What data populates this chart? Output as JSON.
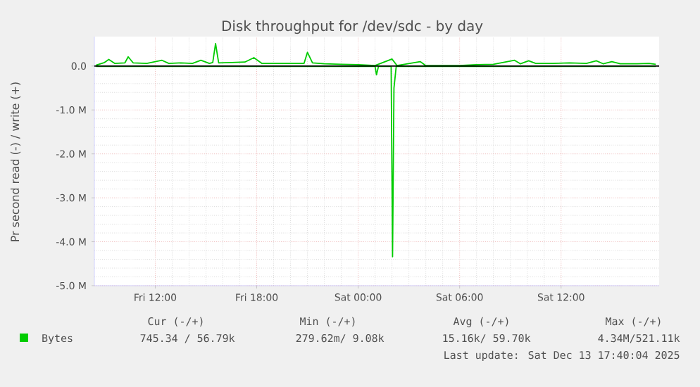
{
  "chart_data": {
    "type": "line",
    "title": "Disk throughput for /dev/sdc - by day",
    "ylabel": "Pr second read (-) / write (+)",
    "xlim": [
      "2025-12-12T08:24",
      "2025-12-13T17:48"
    ],
    "ylim": [
      -5,
      0.67
    ],
    "xticks": [
      {
        "value": "2025-12-12T12:00",
        "label": "Fri 12:00"
      },
      {
        "value": "2025-12-12T18:00",
        "label": "Fri 18:00"
      },
      {
        "value": "2025-12-13T00:00",
        "label": "Sat 00:00"
      },
      {
        "value": "2025-12-13T06:00",
        "label": "Sat 06:00"
      },
      {
        "value": "2025-12-13T12:00",
        "label": "Sat 12:00"
      }
    ],
    "yticks": [
      {
        "value": -5,
        "label": "-5.0 M"
      },
      {
        "value": -4,
        "label": "-4.0 M"
      },
      {
        "value": -3,
        "label": "-3.0 M"
      },
      {
        "value": -2,
        "label": "-2.0 M"
      },
      {
        "value": -1,
        "label": "-1.0 M"
      },
      {
        "value": 0,
        "label": "0.0"
      }
    ],
    "grid": true,
    "legend": "bottom",
    "marker": "none",
    "line_style": "solid",
    "ref_lines": [
      {
        "axis": "y",
        "value": 0,
        "color": "#000000"
      }
    ],
    "series": [
      {
        "name": "Bytes",
        "color": "#00cc00",
        "x": [
          "2025-12-12T08:30",
          "2025-12-12T09:00",
          "2025-12-12T09:15",
          "2025-12-12T09:36",
          "2025-12-12T10:12",
          "2025-12-12T10:24",
          "2025-12-12T10:42",
          "2025-12-12T11:30",
          "2025-12-12T12:24",
          "2025-12-12T12:48",
          "2025-12-12T13:30",
          "2025-12-12T14:12",
          "2025-12-12T14:42",
          "2025-12-12T15:12",
          "2025-12-12T15:24",
          "2025-12-12T15:34",
          "2025-12-12T15:45",
          "2025-12-12T16:30",
          "2025-12-12T17:18",
          "2025-12-12T17:50",
          "2025-12-12T18:18",
          "2025-12-12T19:30",
          "2025-12-12T20:48",
          "2025-12-12T21:00",
          "2025-12-12T21:18",
          "2025-12-12T22:00",
          "2025-12-12T23:00",
          "2025-12-13T00:00",
          "2025-12-13T01:00",
          "2025-12-13T02:00",
          "2025-12-13T02:18",
          "2025-12-13T03:40",
          "2025-12-13T04:00",
          "2025-12-13T06:00",
          "2025-12-13T07:00",
          "2025-12-13T08:00",
          "2025-12-13T09:15",
          "2025-12-13T09:36",
          "2025-12-13T10:05",
          "2025-12-13T10:30",
          "2025-12-13T11:30",
          "2025-12-13T12:30",
          "2025-12-13T13:30",
          "2025-12-13T14:05",
          "2025-12-13T14:30",
          "2025-12-13T15:00",
          "2025-12-13T15:30",
          "2025-12-13T16:30",
          "2025-12-13T17:12",
          "2025-12-13T17:36"
        ],
        "values": [
          0.02,
          0.08,
          0.15,
          0.06,
          0.07,
          0.21,
          0.07,
          0.06,
          0.13,
          0.06,
          0.07,
          0.06,
          0.13,
          0.06,
          0.08,
          0.51,
          0.07,
          0.08,
          0.09,
          0.19,
          0.06,
          0.06,
          0.06,
          0.31,
          0.07,
          0.05,
          0.04,
          0.03,
          0.01,
          0.16,
          0.01,
          0.1,
          0.01,
          0.01,
          0.03,
          0.04,
          0.13,
          0.05,
          0.12,
          0.06,
          0.06,
          0.07,
          0.06,
          0.12,
          0.05,
          0.1,
          0.05,
          0.05,
          0.06,
          0.04
        ]
      },
      {
        "color": "#00cc00",
        "x": [
          "2025-12-12T08:30",
          "2025-12-13T01:00",
          "2025-12-13T01:05",
          "2025-12-13T01:12",
          "2025-12-13T01:57",
          "2025-12-13T02:02",
          "2025-12-13T02:07",
          "2025-12-13T02:15",
          "2025-12-13T17:36"
        ],
        "values": [
          -0.01,
          -0.01,
          -0.2,
          -0.01,
          -0.01,
          -4.34,
          -0.5,
          -0.01,
          -0.01
        ]
      }
    ],
    "annotations": [
      "Cur (-/+)",
      "Min (-/+)",
      "Avg (-/+)",
      "Max (-/+)",
      "745.34 / 56.79k",
      "279.62m/  9.08k",
      "15.16k/ 59.70k",
      "4.34M/521.11k",
      "Last update: Sat Dec 13 17:40:04 2025"
    ]
  }
}
